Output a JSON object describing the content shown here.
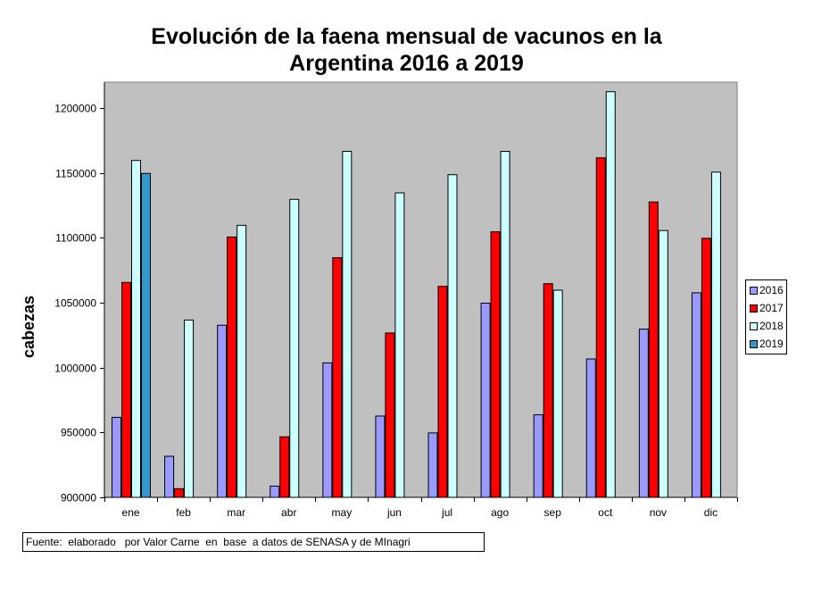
{
  "title": {
    "line1": "Evolución de la faena mensual de vacunos en la",
    "line2": "Argentina 2016 a 2019"
  },
  "footer": "Fuente:  elaborado   por Valor Carne  en  base  a datos de SENASA y de MInagri",
  "chart_data": {
    "type": "bar",
    "title": "Evolución de la faena mensual de vacunos en la Argentina 2016 a 2019",
    "xlabel": "",
    "ylabel": "cabezas",
    "ylim": [
      900000,
      1220000
    ],
    "yticks": [
      900000,
      950000,
      1000000,
      1050000,
      1100000,
      1150000,
      1200000
    ],
    "ytick_labels": [
      "900000",
      "950000",
      "1000000",
      "1050000",
      "1100000",
      "1150000",
      "1200000"
    ],
    "grid": false,
    "legend_position": "right",
    "categories": [
      "ene",
      "feb",
      "mar",
      "abr",
      "may",
      "jun",
      "jul",
      "ago",
      "sep",
      "oct",
      "nov",
      "dic"
    ],
    "series": [
      {
        "name": "2016",
        "color": "#9999ff",
        "values": [
          962000,
          932000,
          1033000,
          909000,
          1004000,
          963000,
          950000,
          1050000,
          964000,
          1007000,
          1030000,
          1058000
        ]
      },
      {
        "name": "2017",
        "color": "#ff0000",
        "values": [
          1066000,
          907000,
          1101000,
          947000,
          1085000,
          1027000,
          1063000,
          1105000,
          1065000,
          1162000,
          1128000,
          1100000
        ]
      },
      {
        "name": "2018",
        "color": "#ccffff",
        "values": [
          1160000,
          1037000,
          1110000,
          1130000,
          1167000,
          1135000,
          1149000,
          1167000,
          1060000,
          1213000,
          1106000,
          1151000
        ]
      },
      {
        "name": "2019",
        "color": "#3399cc",
        "values": [
          1150000,
          null,
          null,
          null,
          null,
          null,
          null,
          null,
          null,
          null,
          null,
          null
        ]
      }
    ]
  }
}
